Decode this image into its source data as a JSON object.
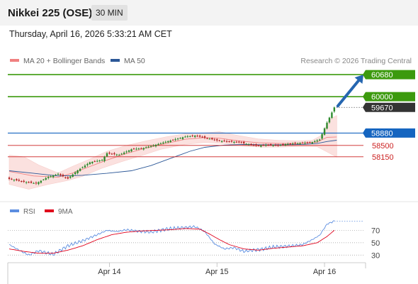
{
  "header": {
    "instrument": "Nikkei 225 (OSE)",
    "timeframe": "30 MIN"
  },
  "datetime": "Thursday, April 16, 2026 5:33:21 AM CET",
  "legend": {
    "ma20_bb": "MA 20 + Bollinger Bands",
    "ma50": "MA 50"
  },
  "credit": "Research © 2026 Trading Central",
  "rsi_legend": {
    "rsi": "RSI",
    "ma9": "9MA"
  },
  "colors": {
    "green_level": "#3c9a0e",
    "blue_level": "#1565c0",
    "red_level": "#cc2222",
    "current_price": "#333333",
    "ma20_bb": "#f08080",
    "ma50": "#2b5797",
    "rsi_line": "#5b8de0",
    "rsi_ma": "#e0001b",
    "bull": "#2e8b2e",
    "bear": "#b22222",
    "arrow": "#2566b0"
  },
  "chart_data": [
    {
      "type": "candlestick",
      "name": "price",
      "x_tick_labels": [
        "Apr 14",
        "Apr 15",
        "Apr 16"
      ],
      "levels": [
        {
          "label": "60680",
          "value": 60680,
          "kind": "resistance"
        },
        {
          "label": "60000",
          "value": 60000,
          "kind": "resistance"
        },
        {
          "label": "59670",
          "value": 59670,
          "kind": "current"
        },
        {
          "label": "58880",
          "value": 58880,
          "kind": "pivot"
        },
        {
          "label": "58500",
          "value": 58500,
          "kind": "support"
        },
        {
          "label": "58150",
          "value": 58150,
          "kind": "support"
        }
      ],
      "ylim": [
        56900,
        60900
      ],
      "close_path": [
        [
          0,
          57470
        ],
        [
          6,
          57380
        ],
        [
          11,
          57330
        ],
        [
          16,
          57530
        ],
        [
          20,
          57620
        ],
        [
          24,
          57480
        ],
        [
          28,
          57730
        ],
        [
          33,
          57980
        ],
        [
          38,
          58050
        ],
        [
          40,
          58260
        ],
        [
          45,
          58210
        ],
        [
          50,
          58380
        ],
        [
          55,
          58420
        ],
        [
          60,
          58520
        ],
        [
          64,
          58610
        ],
        [
          68,
          58690
        ],
        [
          72,
          58770
        ],
        [
          76,
          58800
        ],
        [
          80,
          58740
        ],
        [
          84,
          58670
        ],
        [
          86,
          58640
        ],
        [
          90,
          58620
        ],
        [
          94,
          58600
        ],
        [
          98,
          58530
        ],
        [
          102,
          58490
        ],
        [
          106,
          58520
        ],
        [
          110,
          58500
        ],
        [
          113,
          58540
        ],
        [
          117,
          58560
        ],
        [
          121,
          58580
        ],
        [
          124,
          58600
        ],
        [
          127,
          58680
        ],
        [
          130,
          59200
        ],
        [
          133,
          59670
        ]
      ],
      "ma20_path": [
        [
          0,
          57700
        ],
        [
          10,
          57560
        ],
        [
          20,
          57520
        ],
        [
          26,
          57650
        ],
        [
          33,
          57850
        ],
        [
          40,
          58050
        ],
        [
          48,
          58250
        ],
        [
          56,
          58420
        ],
        [
          64,
          58560
        ],
        [
          72,
          58690
        ],
        [
          80,
          58740
        ],
        [
          86,
          58720
        ],
        [
          94,
          58640
        ],
        [
          102,
          58580
        ],
        [
          110,
          58560
        ],
        [
          118,
          58560
        ],
        [
          126,
          58600
        ],
        [
          130,
          58750
        ],
        [
          134,
          58760
        ]
      ],
      "bb_upper_path": [
        [
          0,
          58200
        ],
        [
          6,
          58150
        ],
        [
          12,
          57900
        ],
        [
          20,
          57650
        ],
        [
          26,
          57860
        ],
        [
          33,
          58080
        ],
        [
          40,
          58320
        ],
        [
          48,
          58500
        ],
        [
          56,
          58640
        ],
        [
          64,
          58760
        ],
        [
          72,
          58860
        ],
        [
          80,
          58890
        ],
        [
          86,
          58920
        ],
        [
          94,
          58800
        ],
        [
          102,
          58700
        ],
        [
          110,
          58660
        ],
        [
          118,
          58640
        ],
        [
          124,
          58660
        ],
        [
          128,
          58820
        ],
        [
          131,
          59300
        ],
        [
          134,
          59420
        ]
      ],
      "bb_lower_path": [
        [
          0,
          57300
        ],
        [
          8,
          57150
        ],
        [
          16,
          57300
        ],
        [
          24,
          57420
        ],
        [
          30,
          57550
        ],
        [
          38,
          57800
        ],
        [
          46,
          58000
        ],
        [
          54,
          58180
        ],
        [
          62,
          58380
        ],
        [
          72,
          58530
        ],
        [
          80,
          58590
        ],
        [
          88,
          58560
        ],
        [
          96,
          58480
        ],
        [
          104,
          58440
        ],
        [
          112,
          58450
        ],
        [
          120,
          58470
        ],
        [
          126,
          58460
        ],
        [
          130,
          58300
        ],
        [
          134,
          58140
        ]
      ],
      "ma50_path": [
        [
          0,
          57720
        ],
        [
          10,
          57640
        ],
        [
          20,
          57560
        ],
        [
          30,
          57580
        ],
        [
          40,
          57640
        ],
        [
          50,
          57720
        ],
        [
          58,
          57880
        ],
        [
          66,
          58100
        ],
        [
          74,
          58320
        ],
        [
          80,
          58440
        ],
        [
          88,
          58510
        ],
        [
          96,
          58530
        ],
        [
          104,
          58520
        ],
        [
          112,
          58520
        ],
        [
          120,
          58530
        ],
        [
          126,
          58560
        ],
        [
          130,
          58620
        ],
        [
          134,
          58660
        ]
      ],
      "forecast": {
        "from": 59670,
        "to": 60680
      }
    },
    {
      "type": "line",
      "name": "RSI",
      "y_ticks": [
        70,
        50,
        30
      ],
      "ylim": [
        20,
        90
      ],
      "series": [
        {
          "name": "RSI",
          "points": [
            [
              0,
              47
            ],
            [
              4,
              38
            ],
            [
              8,
              30
            ],
            [
              12,
              37
            ],
            [
              18,
              31
            ],
            [
              24,
              45
            ],
            [
              30,
              53
            ],
            [
              36,
              63
            ],
            [
              40,
              70
            ],
            [
              44,
              68
            ],
            [
              48,
              71
            ],
            [
              52,
              69
            ],
            [
              58,
              67
            ],
            [
              64,
              72
            ],
            [
              70,
              74
            ],
            [
              76,
              76
            ],
            [
              80,
              68
            ],
            [
              84,
              48
            ],
            [
              88,
              40
            ],
            [
              92,
              42
            ],
            [
              96,
              36
            ],
            [
              100,
              38
            ],
            [
              104,
              40
            ],
            [
              108,
              43
            ],
            [
              112,
              44
            ],
            [
              116,
              45
            ],
            [
              120,
              47
            ],
            [
              124,
              55
            ],
            [
              127,
              62
            ],
            [
              130,
              80
            ],
            [
              133,
              85
            ]
          ]
        },
        {
          "name": "9MA",
          "points": [
            [
              0,
              40
            ],
            [
              6,
              36
            ],
            [
              12,
              33
            ],
            [
              18,
              33
            ],
            [
              24,
              38
            ],
            [
              30,
              45
            ],
            [
              36,
              55
            ],
            [
              42,
              63
            ],
            [
              48,
              67
            ],
            [
              54,
              69
            ],
            [
              60,
              70
            ],
            [
              66,
              71
            ],
            [
              72,
              73
            ],
            [
              78,
              72
            ],
            [
              82,
              64
            ],
            [
              86,
              55
            ],
            [
              90,
              47
            ],
            [
              96,
              40
            ],
            [
              102,
              38
            ],
            [
              108,
              41
            ],
            [
              114,
              43
            ],
            [
              120,
              45
            ],
            [
              126,
              50
            ],
            [
              130,
              60
            ],
            [
              133,
              70
            ]
          ]
        }
      ]
    }
  ]
}
